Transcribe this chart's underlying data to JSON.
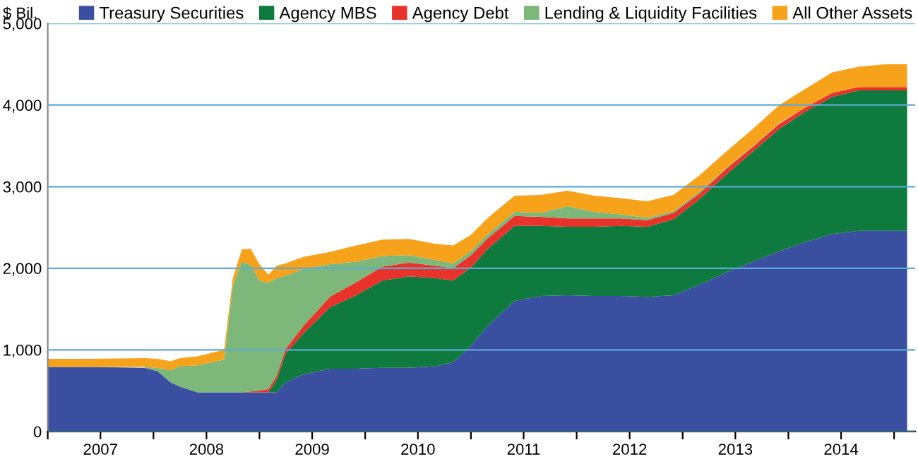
{
  "chart_data": {
    "type": "area",
    "stacked": true,
    "ylabel": "$ Bil.",
    "legend": "top",
    "grid": "y",
    "x": [
      "2007-01-01",
      "2007-06-01",
      "2007-12-01",
      "2008-01-15",
      "2008-03-01",
      "2008-04-01",
      "2008-06-01",
      "2008-09-01",
      "2008-10-01",
      "2008-11-01",
      "2008-12-01",
      "2009-01-01",
      "2009-02-01",
      "2009-03-01",
      "2009-04-01",
      "2009-06-01",
      "2009-09-01",
      "2009-12-01",
      "2010-03-01",
      "2010-06-01",
      "2010-09-01",
      "2010-11-01",
      "2011-01-01",
      "2011-03-01",
      "2011-06-01",
      "2011-09-01",
      "2011-12-01",
      "2012-03-01",
      "2012-06-01",
      "2012-09-01",
      "2012-12-01",
      "2013-03-01",
      "2013-06-01",
      "2013-09-01",
      "2013-12-01",
      "2014-03-01",
      "2014-06-01",
      "2014-09-01",
      "2014-12-01",
      "2015-02-15"
    ],
    "series": [
      {
        "name": "Treasury Securities",
        "color": "#3a4fa0",
        "values": [
          790,
          790,
          780,
          740,
          600,
          550,
          480,
          480,
          480,
          480,
          480,
          480,
          480,
          480,
          600,
          700,
          770,
          770,
          780,
          780,
          800,
          850,
          1050,
          1300,
          1600,
          1660,
          1670,
          1660,
          1660,
          1650,
          1670,
          1800,
          1950,
          2080,
          2210,
          2320,
          2420,
          2460,
          2460,
          2460
        ]
      },
      {
        "name": "Agency MBS",
        "color": "#0e7a3d",
        "values": [
          0,
          0,
          0,
          0,
          0,
          0,
          0,
          0,
          0,
          0,
          0,
          0,
          0,
          150,
          350,
          500,
          750,
          900,
          1070,
          1120,
          1080,
          1000,
          960,
          940,
          920,
          860,
          840,
          850,
          860,
          860,
          930,
          1050,
          1200,
          1350,
          1500,
          1600,
          1680,
          1720,
          1720,
          1720
        ]
      },
      {
        "name": "Agency Debt",
        "color": "#e8332a",
        "values": [
          0,
          0,
          0,
          0,
          0,
          0,
          0,
          0,
          0,
          0,
          10,
          20,
          40,
          50,
          60,
          90,
          130,
          160,
          170,
          170,
          150,
          150,
          150,
          130,
          120,
          110,
          100,
          100,
          90,
          80,
          80,
          70,
          70,
          60,
          60,
          50,
          50,
          40,
          40,
          40
        ]
      },
      {
        "name": "Lending & Liquidity Facilities",
        "color": "#7db87a",
        "values": [
          null,
          null,
          10,
          40,
          150,
          250,
          330,
          400,
          1300,
          1600,
          1550,
          1350,
          1300,
          1200,
          900,
          700,
          400,
          250,
          130,
          90,
          70,
          60,
          50,
          50,
          50,
          50,
          150,
          80,
          50,
          30,
          20,
          20,
          10,
          10,
          10,
          null,
          null,
          null,
          null,
          null
        ]
      },
      {
        "name": "All Other Assets",
        "color": "#f7a21b",
        "values": [
          100,
          100,
          110,
          110,
          110,
          100,
          110,
          120,
          100,
          150,
          200,
          200,
          100,
          150,
          150,
          150,
          150,
          200,
          200,
          200,
          200,
          220,
          200,
          200,
          200,
          220,
          190,
          200,
          200,
          200,
          200,
          200,
          200,
          210,
          220,
          230,
          250,
          250,
          280,
          280
        ]
      }
    ],
    "xlim": [
      "2007-01-01",
      "2015-03-15"
    ],
    "xticks": [
      {
        "value": "2007-01-01",
        "label": null
      },
      {
        "value": "2007-07-02",
        "label": "2007"
      },
      {
        "value": "2008-01-01",
        "label": null
      },
      {
        "value": "2008-07-02",
        "label": "2008"
      },
      {
        "value": "2009-01-01",
        "label": null
      },
      {
        "value": "2009-07-02",
        "label": "2009"
      },
      {
        "value": "2010-01-01",
        "label": null
      },
      {
        "value": "2010-07-02",
        "label": "2010"
      },
      {
        "value": "2011-01-01",
        "label": null
      },
      {
        "value": "2011-07-02",
        "label": "2011"
      },
      {
        "value": "2012-01-01",
        "label": null
      },
      {
        "value": "2012-07-02",
        "label": "2012"
      },
      {
        "value": "2013-01-01",
        "label": null
      },
      {
        "value": "2013-07-02",
        "label": "2013"
      },
      {
        "value": "2014-01-01",
        "label": null
      },
      {
        "value": "2014-07-02",
        "label": "2014"
      },
      {
        "value": "2015-01-01",
        "label": null
      }
    ],
    "ylim": [
      0,
      5000
    ],
    "yticks": [
      0,
      {
        "value": 1000,
        "label": "1,000"
      },
      {
        "value": 2000,
        "label": "2,000"
      },
      {
        "value": 3000,
        "label": "3,000"
      },
      {
        "value": 4000,
        "label": "4,000"
      },
      {
        "value": 5000,
        "label": "5,000"
      }
    ]
  }
}
